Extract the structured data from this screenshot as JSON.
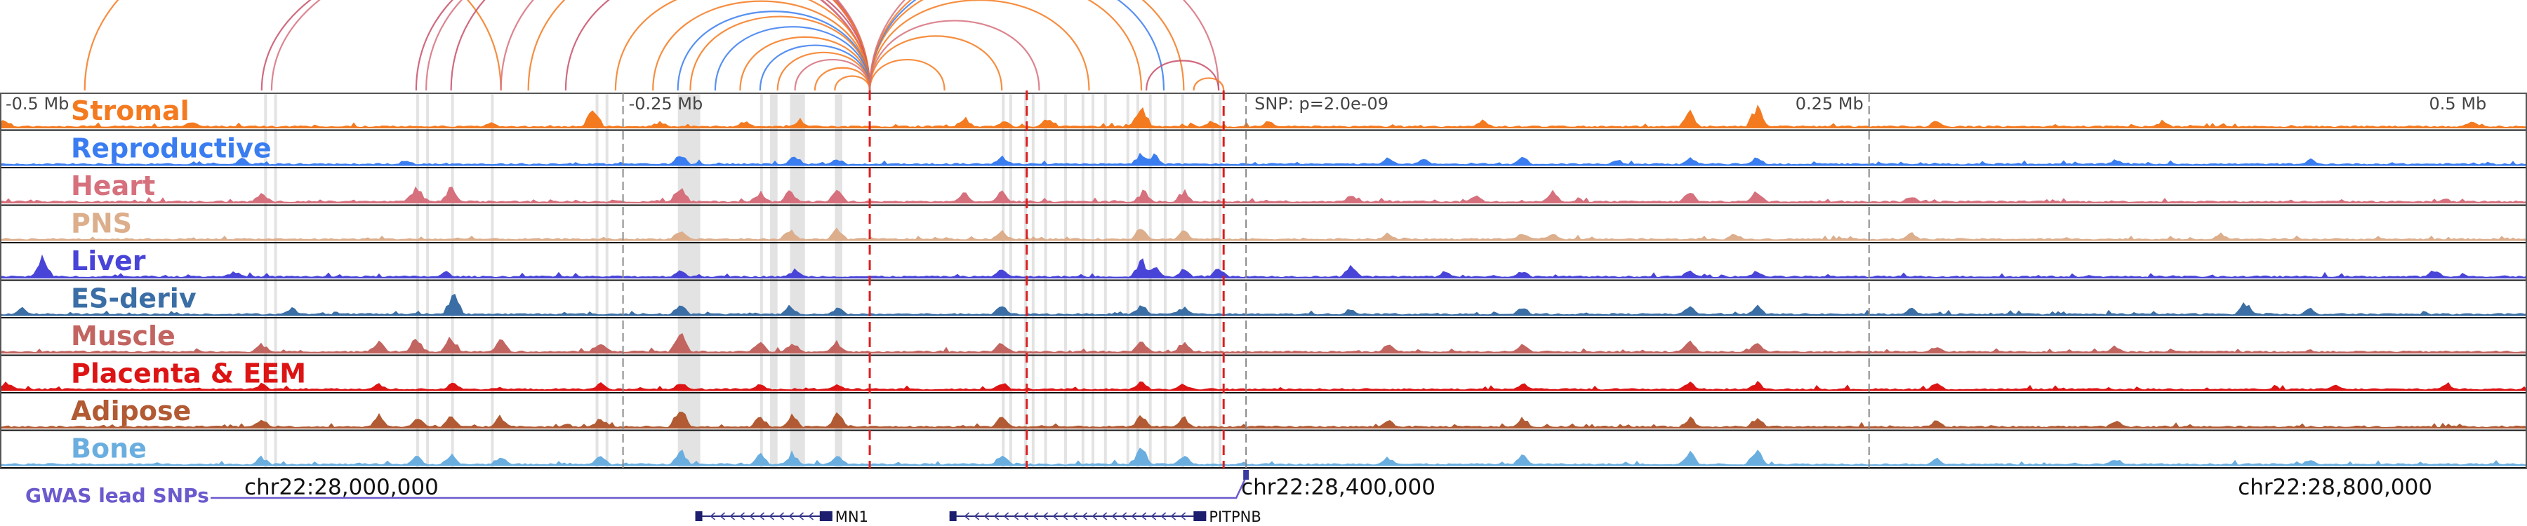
{
  "chart_data": {
    "type": "area",
    "title": "",
    "x_range": [
      27863000,
      28877000
    ],
    "x_unit": "bp",
    "ruler": {
      "center": 28363000,
      "ticks": [
        {
          "pos": 27863000,
          "label": "-0.5 Mb"
        },
        {
          "pos": 28113000,
          "label": "-0.25 Mb"
        },
        {
          "pos": 28613000,
          "label": "0.25 Mb"
        },
        {
          "pos": 28863000,
          "label": "0.5 Mb"
        }
      ],
      "center_label": "SNP: p=2.0e-09"
    },
    "coordinate_labels": [
      {
        "pos": 28000000,
        "label": "chr22:28,000,000"
      },
      {
        "pos": 28400000,
        "label": "chr22:28,400,000"
      },
      {
        "pos": 28800000,
        "label": "chr22:28,800,000"
      }
    ],
    "tracks": [
      {
        "name": "Stromal",
        "color": "#f47a20",
        "peaks": [
          [
            27865000,
            0.35
          ],
          [
            27940000,
            0.3
          ],
          [
            28060000,
            0.25
          ],
          [
            28101000,
            0.9
          ],
          [
            28128000,
            0.25
          ],
          [
            28162000,
            0.3
          ],
          [
            28184000,
            0.35
          ],
          [
            28250000,
            0.45
          ],
          [
            28266000,
            0.35
          ],
          [
            28283000,
            0.4
          ],
          [
            28319000,
            0.4
          ],
          [
            28321000,
            0.9
          ],
          [
            28349000,
            0.3
          ],
          [
            28372000,
            0.3
          ],
          [
            28458000,
            0.35
          ],
          [
            28541000,
            0.7
          ],
          [
            28568000,
            0.9
          ],
          [
            28640000,
            0.3
          ],
          [
            28731000,
            0.3
          ],
          [
            28855000,
            0.3
          ]
        ]
      },
      {
        "name": "Reproductive",
        "color": "#3a7df0",
        "peaks": [
          [
            27960000,
            0.3
          ],
          [
            28026000,
            0.25
          ],
          [
            28136000,
            0.45
          ],
          [
            28182000,
            0.4
          ],
          [
            28199000,
            0.3
          ],
          [
            28265000,
            0.4
          ],
          [
            28321000,
            0.5
          ],
          [
            28326000,
            0.45
          ],
          [
            28420000,
            0.3
          ],
          [
            28434000,
            0.3
          ],
          [
            28474000,
            0.35
          ],
          [
            28512000,
            0.25
          ],
          [
            28541000,
            0.35
          ],
          [
            28568000,
            0.35
          ],
          [
            28712000,
            0.25
          ],
          [
            28790000,
            0.25
          ]
        ]
      },
      {
        "name": "Heart",
        "color": "#d6707d",
        "peaks": [
          [
            27968000,
            0.4
          ],
          [
            28030000,
            0.7
          ],
          [
            28044000,
            0.65
          ],
          [
            28136000,
            0.7
          ],
          [
            28168000,
            0.45
          ],
          [
            28180000,
            0.5
          ],
          [
            28199000,
            0.5
          ],
          [
            28250000,
            0.4
          ],
          [
            28265000,
            0.45
          ],
          [
            28322000,
            0.5
          ],
          [
            28338000,
            0.5
          ],
          [
            28405000,
            0.3
          ],
          [
            28455000,
            0.35
          ],
          [
            28486000,
            0.45
          ],
          [
            28541000,
            0.45
          ],
          [
            28568000,
            0.55
          ],
          [
            28630000,
            0.3
          ]
        ]
      },
      {
        "name": "PNS",
        "color": "#dcae8c",
        "peaks": [
          [
            28136000,
            0.45
          ],
          [
            28180000,
            0.45
          ],
          [
            28199000,
            0.45
          ],
          [
            28265000,
            0.4
          ],
          [
            28321000,
            0.55
          ],
          [
            28338000,
            0.4
          ],
          [
            28420000,
            0.3
          ],
          [
            28474000,
            0.3
          ],
          [
            28486000,
            0.35
          ],
          [
            28559000,
            0.3
          ],
          [
            28630000,
            0.3
          ],
          [
            28754000,
            0.3
          ]
        ]
      },
      {
        "name": "Liver",
        "color": "#4844d8",
        "peaks": [
          [
            27880000,
            0.95
          ],
          [
            27957000,
            0.3
          ],
          [
            28042000,
            0.25
          ],
          [
            28136000,
            0.3
          ],
          [
            28182000,
            0.35
          ],
          [
            28265000,
            0.4
          ],
          [
            28321000,
            0.75
          ],
          [
            28326000,
            0.55
          ],
          [
            28338000,
            0.35
          ],
          [
            28352000,
            0.45
          ],
          [
            28405000,
            0.5
          ],
          [
            28443000,
            0.3
          ],
          [
            28474000,
            0.3
          ],
          [
            28541000,
            0.3
          ],
          [
            28568000,
            0.3
          ],
          [
            28840000,
            0.35
          ]
        ]
      },
      {
        "name": "ES-deriv",
        "color": "#3a6ea5",
        "peaks": [
          [
            27872000,
            0.3
          ],
          [
            27980000,
            0.35
          ],
          [
            28045000,
            0.9
          ],
          [
            28136000,
            0.45
          ],
          [
            28180000,
            0.4
          ],
          [
            28199000,
            0.35
          ],
          [
            28265000,
            0.4
          ],
          [
            28321000,
            0.45
          ],
          [
            28338000,
            0.35
          ],
          [
            28405000,
            0.3
          ],
          [
            28474000,
            0.35
          ],
          [
            28541000,
            0.35
          ],
          [
            28568000,
            0.4
          ],
          [
            28630000,
            0.3
          ],
          [
            28764000,
            0.55
          ],
          [
            28790000,
            0.3
          ]
        ]
      },
      {
        "name": "Muscle",
        "color": "#c26460",
        "peaks": [
          [
            27968000,
            0.4
          ],
          [
            28015000,
            0.45
          ],
          [
            28030000,
            0.6
          ],
          [
            28044000,
            0.7
          ],
          [
            28064000,
            0.55
          ],
          [
            28104000,
            0.4
          ],
          [
            28136000,
            0.9
          ],
          [
            28168000,
            0.45
          ],
          [
            28181000,
            0.5
          ],
          [
            28199000,
            0.45
          ],
          [
            28265000,
            0.45
          ],
          [
            28321000,
            0.45
          ],
          [
            28338000,
            0.45
          ],
          [
            28420000,
            0.35
          ],
          [
            28474000,
            0.4
          ],
          [
            28541000,
            0.45
          ],
          [
            28568000,
            0.45
          ],
          [
            28640000,
            0.3
          ],
          [
            28712000,
            0.3
          ]
        ]
      },
      {
        "name": "Placenta & EEM",
        "color": "#dc1414",
        "peaks": [
          [
            27866000,
            0.35
          ],
          [
            27968000,
            0.3
          ],
          [
            28015000,
            0.3
          ],
          [
            28045000,
            0.35
          ],
          [
            28104000,
            0.3
          ],
          [
            28136000,
            0.35
          ],
          [
            28168000,
            0.3
          ],
          [
            28199000,
            0.3
          ],
          [
            28265000,
            0.35
          ],
          [
            28321000,
            0.35
          ],
          [
            28338000,
            0.3
          ],
          [
            28474000,
            0.3
          ],
          [
            28541000,
            0.35
          ],
          [
            28568000,
            0.35
          ],
          [
            28640000,
            0.3
          ],
          [
            28800000,
            0.25
          ],
          [
            28845000,
            0.3
          ]
        ]
      },
      {
        "name": "Adipose",
        "color": "#b15a33",
        "peaks": [
          [
            27968000,
            0.45
          ],
          [
            28015000,
            0.5
          ],
          [
            28031000,
            0.45
          ],
          [
            28044000,
            0.55
          ],
          [
            28064000,
            0.5
          ],
          [
            28104000,
            0.45
          ],
          [
            28136000,
            0.85
          ],
          [
            28168000,
            0.5
          ],
          [
            28181000,
            0.55
          ],
          [
            28199000,
            0.6
          ],
          [
            28265000,
            0.5
          ],
          [
            28321000,
            0.5
          ],
          [
            28338000,
            0.45
          ],
          [
            28420000,
            0.35
          ],
          [
            28474000,
            0.45
          ],
          [
            28541000,
            0.45
          ],
          [
            28568000,
            0.45
          ],
          [
            28640000,
            0.3
          ],
          [
            28712000,
            0.3
          ]
        ]
      },
      {
        "name": "Bone",
        "color": "#6aaee0",
        "peaks": [
          [
            27968000,
            0.35
          ],
          [
            28030000,
            0.4
          ],
          [
            28044000,
            0.45
          ],
          [
            28064000,
            0.45
          ],
          [
            28104000,
            0.4
          ],
          [
            28136000,
            0.7
          ],
          [
            28168000,
            0.5
          ],
          [
            28181000,
            0.55
          ],
          [
            28199000,
            0.5
          ],
          [
            28265000,
            0.45
          ],
          [
            28321000,
            0.75
          ],
          [
            28338000,
            0.45
          ],
          [
            28420000,
            0.35
          ],
          [
            28474000,
            0.45
          ],
          [
            28541000,
            0.55
          ],
          [
            28568000,
            0.7
          ],
          [
            28640000,
            0.3
          ],
          [
            28712000,
            0.3
          ],
          [
            28790000,
            0.3
          ]
        ]
      }
    ],
    "highlights": [
      [
        27969000,
        27970000
      ],
      [
        27973000,
        27974000
      ],
      [
        28030000,
        28031000
      ],
      [
        28034000,
        28035000
      ],
      [
        28044000,
        28045000
      ],
      [
        28060000,
        28061000
      ],
      [
        28102000,
        28103000
      ],
      [
        28106000,
        28107000
      ],
      [
        28135000,
        28144000
      ],
      [
        28168000,
        28169000
      ],
      [
        28172000,
        28175000
      ],
      [
        28180000,
        28186000
      ],
      [
        28198000,
        28201000
      ],
      [
        28265000,
        28266000
      ],
      [
        28268000,
        28269000
      ],
      [
        28274000,
        28275000
      ],
      [
        28277000,
        28278000
      ],
      [
        28282000,
        28283000
      ],
      [
        28290000,
        28291000
      ],
      [
        28297000,
        28298000
      ],
      [
        28301000,
        28302000
      ],
      [
        28306000,
        28307000
      ],
      [
        28315000,
        28316000
      ],
      [
        28319000,
        28320000
      ],
      [
        28324000,
        28325000
      ],
      [
        28330000,
        28331000
      ],
      [
        28337000,
        28338000
      ],
      [
        28349000,
        28350000
      ],
      [
        28352000,
        28353000
      ]
    ],
    "red_dashed_lines": [
      28212000,
      28275000,
      28354000
    ],
    "gray_dashed_lines": [
      28113000,
      28363000,
      28613000
    ],
    "arcs": [
      {
        "from": 27897000,
        "to": 28064000,
        "color": "#f47a20"
      },
      {
        "from": 27968000,
        "to": 28212000,
        "color": "#c8506a"
      },
      {
        "from": 27972000,
        "to": 28212000,
        "color": "#d6707d"
      },
      {
        "from": 28030000,
        "to": 28212000,
        "color": "#c8506a"
      },
      {
        "from": 28034000,
        "to": 28212000,
        "color": "#d6707d"
      },
      {
        "from": 28044000,
        "to": 28212000,
        "color": "#c8506a"
      },
      {
        "from": 28064000,
        "to": 28212000,
        "color": "#d6707d"
      },
      {
        "from": 28075000,
        "to": 28212000,
        "color": "#f47a20"
      },
      {
        "from": 28090000,
        "to": 28212000,
        "color": "#c8506a"
      },
      {
        "from": 28110000,
        "to": 28212000,
        "color": "#f47a20"
      },
      {
        "from": 28125000,
        "to": 28212000,
        "color": "#f47a20"
      },
      {
        "from": 28135000,
        "to": 28212000,
        "color": "#3a7df0"
      },
      {
        "from": 28140000,
        "to": 28212000,
        "color": "#f47a20"
      },
      {
        "from": 28150000,
        "to": 28212000,
        "color": "#3a7df0"
      },
      {
        "from": 28160000,
        "to": 28212000,
        "color": "#f47a20"
      },
      {
        "from": 28168000,
        "to": 28212000,
        "color": "#3a7df0"
      },
      {
        "from": 28175000,
        "to": 28212000,
        "color": "#f47a20"
      },
      {
        "from": 28182000,
        "to": 28212000,
        "color": "#d6707d"
      },
      {
        "from": 28190000,
        "to": 28212000,
        "color": "#f47a20"
      },
      {
        "from": 28198000,
        "to": 28212000,
        "color": "#f47a20"
      },
      {
        "from": 28212000,
        "to": 28242000,
        "color": "#f47a20"
      },
      {
        "from": 28212000,
        "to": 28265000,
        "color": "#f47a20"
      },
      {
        "from": 28212000,
        "to": 28280000,
        "color": "#d6707d"
      },
      {
        "from": 28212000,
        "to": 28300000,
        "color": "#f47a20"
      },
      {
        "from": 28212000,
        "to": 28321000,
        "color": "#f47a20"
      },
      {
        "from": 28212000,
        "to": 28330000,
        "color": "#3a7df0"
      },
      {
        "from": 28212000,
        "to": 28338000,
        "color": "#f47a20"
      },
      {
        "from": 28212000,
        "to": 28352000,
        "color": "#d6707d"
      },
      {
        "from": 28323000,
        "to": 28352000,
        "color": "#c8506a"
      },
      {
        "from": 28342000,
        "to": 28354000,
        "color": "#f47a20"
      }
    ],
    "gwas": {
      "label": "GWAS lead SNPs",
      "color": "#6a5acd",
      "snps": [
        28363000
      ]
    },
    "genes": [
      {
        "name": "MN1",
        "start": 28142000,
        "end": 28197000,
        "strand": "-"
      },
      {
        "name": "PITPNB",
        "start": 28244000,
        "end": 28347000,
        "strand": "-"
      }
    ]
  }
}
